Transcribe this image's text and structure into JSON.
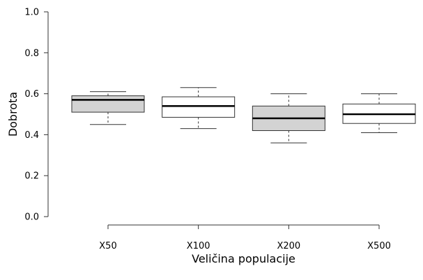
{
  "chart_data": {
    "type": "boxplot",
    "xlabel": "Veličina populacije",
    "ylabel": "Dobrota",
    "ylim": [
      0.0,
      1.0
    ],
    "yticks": [
      "0.0",
      "0.2",
      "0.4",
      "0.6",
      "0.8",
      "1.0"
    ],
    "ytick_values": [
      0.0,
      0.2,
      0.4,
      0.6,
      0.8,
      1.0
    ],
    "grid": false,
    "categories": [
      "X50",
      "X100",
      "X200",
      "X500"
    ],
    "boxes": [
      {
        "category": "X50",
        "whisker_low": 0.45,
        "q1": 0.51,
        "median": 0.57,
        "q3": 0.59,
        "whisker_high": 0.61,
        "fill": "#d3d3d3"
      },
      {
        "category": "X100",
        "whisker_low": 0.43,
        "q1": 0.485,
        "median": 0.54,
        "q3": 0.585,
        "whisker_high": 0.63,
        "fill": "#ffffff"
      },
      {
        "category": "X200",
        "whisker_low": 0.36,
        "q1": 0.42,
        "median": 0.48,
        "q3": 0.54,
        "whisker_high": 0.6,
        "fill": "#d3d3d3"
      },
      {
        "category": "X500",
        "whisker_low": 0.41,
        "q1": 0.455,
        "median": 0.5,
        "q3": 0.55,
        "whisker_high": 0.6,
        "fill": "#ffffff"
      }
    ]
  }
}
